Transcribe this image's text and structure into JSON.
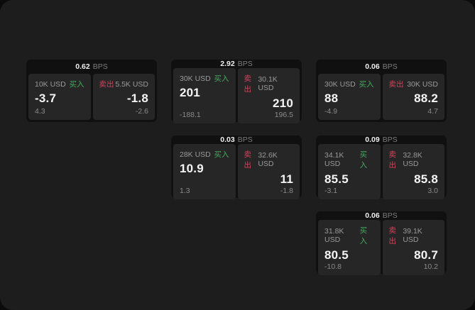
{
  "labels": {
    "buy": "买入",
    "sell": "卖出",
    "bps_unit": "BPS"
  },
  "colors": {
    "buy_green": "#46aa5f",
    "sell_red": "#d1445c",
    "panel_bg": "#1d1d1d",
    "card_bg": "#101010",
    "tile_bg": "#262626"
  },
  "cards": [
    {
      "row": 1,
      "col": 1,
      "bps": "0.62",
      "buy": {
        "amount": "10K USD",
        "value": "-3.7",
        "sub": "4.3"
      },
      "sell": {
        "amount": "5.5K USD",
        "value": "-1.8",
        "sub": "-2.6"
      }
    },
    {
      "row": 1,
      "col": 2,
      "bps": "2.92",
      "buy": {
        "amount": "30K USD",
        "value": "201",
        "sub": "-188.1"
      },
      "sell": {
        "amount": "30.1K USD",
        "value": "210",
        "sub": "196.5"
      }
    },
    {
      "row": 1,
      "col": 3,
      "bps": "0.06",
      "buy": {
        "amount": "30K USD",
        "value": "88",
        "sub": "-4.9"
      },
      "sell": {
        "amount": "30K USD",
        "value": "88.2",
        "sub": "4.7"
      }
    },
    {
      "row": 2,
      "col": 2,
      "bps": "0.03",
      "buy": {
        "amount": "28K USD",
        "value": "10.9",
        "sub": "1.3"
      },
      "sell": {
        "amount": "32.6K USD",
        "value": "11",
        "sub": "-1.8"
      }
    },
    {
      "row": 2,
      "col": 3,
      "bps": "0.09",
      "buy": {
        "amount": "34.1K USD",
        "value": "85.5",
        "sub": "-3.1"
      },
      "sell": {
        "amount": "32.8K USD",
        "value": "85.8",
        "sub": "3.0"
      }
    },
    {
      "row": 3,
      "col": 3,
      "bps": "0.06",
      "buy": {
        "amount": "31.8K USD",
        "value": "80.5",
        "sub": "-10.8"
      },
      "sell": {
        "amount": "39.1K USD",
        "value": "80.7",
        "sub": "10.2"
      }
    }
  ]
}
